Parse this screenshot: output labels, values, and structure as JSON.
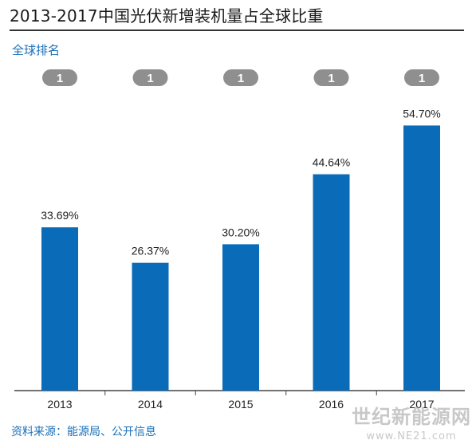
{
  "header": {
    "title": "2013-2017中国光伏新增装机量占全球比重",
    "rank_label": "全球排名"
  },
  "footer": {
    "source": "资料来源：能源局、公开信息"
  },
  "watermark": {
    "name": "世纪新能源网",
    "url": "www.NE21.com"
  },
  "colors": {
    "bar": "#0a6bb8",
    "badge": "#8f8f8f",
    "accent_text": "#1a6fb8"
  },
  "chart_data": {
    "type": "bar",
    "categories": [
      "2013",
      "2014",
      "2015",
      "2016",
      "2017"
    ],
    "values": [
      33.69,
      26.37,
      30.2,
      44.64,
      54.7
    ],
    "value_labels": [
      "33.69%",
      "26.37%",
      "30.20%",
      "44.64%",
      "54.70%"
    ],
    "ranks": [
      "1",
      "1",
      "1",
      "1",
      "1"
    ],
    "title": "2013-2017中国光伏新增装机量占全球比重",
    "xlabel": "",
    "ylabel": "",
    "ylim": [
      0,
      60
    ],
    "grid": false,
    "legend": "none"
  }
}
